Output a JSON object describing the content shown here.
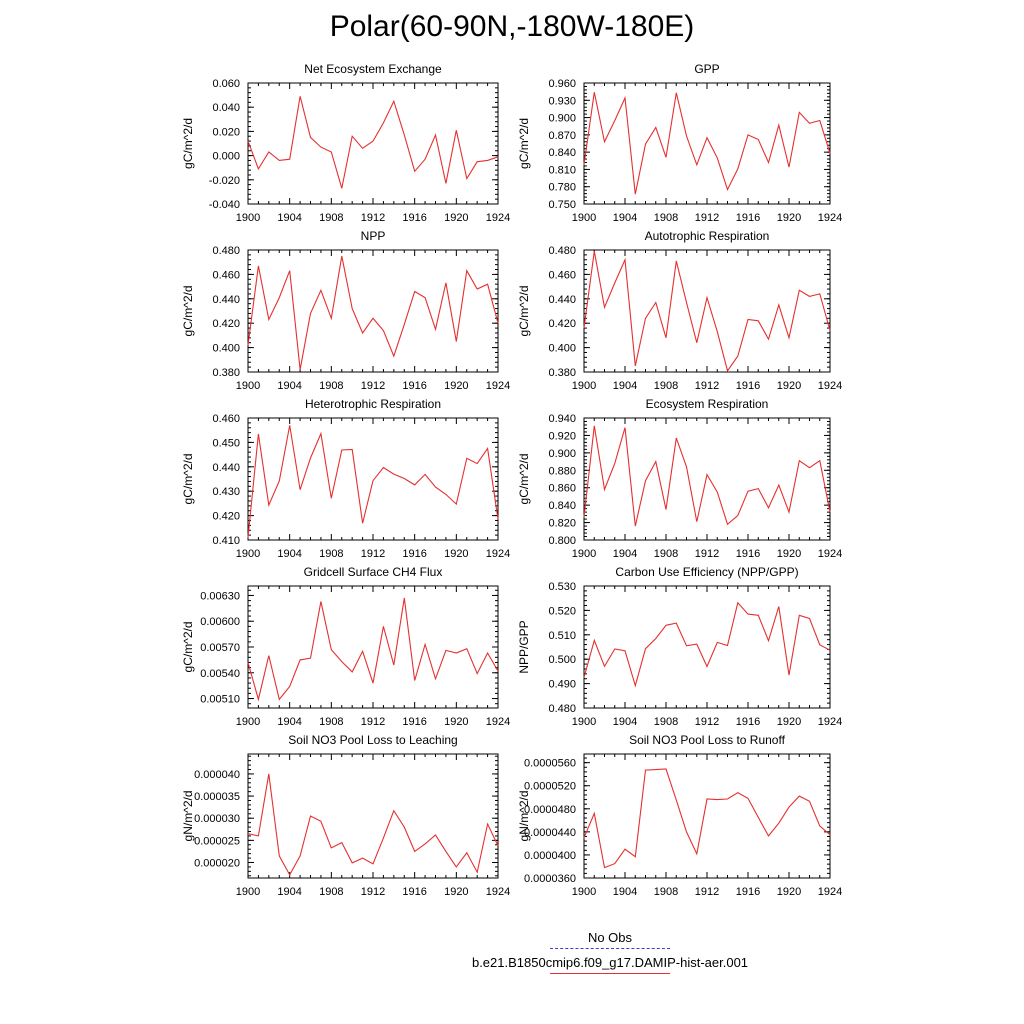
{
  "figure": {
    "title": "Polar(60-90N,-180W-180E)",
    "legend": [
      {
        "label": "No Obs",
        "style": "dashed",
        "color": "#3b3bd6"
      },
      {
        "label": "b.e21.B1850cmip6.f09_g17.DAMIP-hist-aer.001",
        "style": "solid",
        "color": "#e53030"
      }
    ]
  },
  "chart_data": [
    {
      "type": "line",
      "title": "Net Ecosystem Exchange",
      "ylabel": "gC/m^2/d",
      "ylim": [
        -0.04,
        0.06
      ],
      "yticks": [
        "-0.040",
        "-0.020",
        "0.000",
        "0.020",
        "0.040",
        "0.060"
      ],
      "xlim": [
        1900,
        1924
      ],
      "xticks": [
        "1900",
        "1904",
        "1908",
        "1912",
        "1916",
        "1920",
        "1924"
      ],
      "series": [
        {
          "color": "#e53030",
          "x": [
            1900,
            1901,
            1902,
            1903,
            1904,
            1905,
            1906,
            1907,
            1908,
            1909,
            1910,
            1911,
            1912,
            1913,
            1914,
            1915,
            1916,
            1917,
            1918,
            1919,
            1920,
            1921,
            1922,
            1923,
            1924
          ],
          "y": [
            0.012,
            -0.011,
            0.003,
            -0.004,
            -0.003,
            0.049,
            0.015,
            0.007,
            0.003,
            -0.027,
            0.016,
            0.006,
            0.012,
            0.027,
            0.045,
            0.017,
            -0.013,
            -0.003,
            0.017,
            -0.023,
            0.021,
            -0.019,
            -0.005,
            -0.004,
            -0.001
          ]
        }
      ]
    },
    {
      "type": "line",
      "title": "GPP",
      "ylabel": "gC/m^2/d",
      "ylim": [
        0.75,
        0.96
      ],
      "yticks": [
        "0.750",
        "0.780",
        "0.810",
        "0.840",
        "0.870",
        "0.900",
        "0.930",
        "0.960"
      ],
      "xlim": [
        1900,
        1924
      ],
      "xticks": [
        "1900",
        "1904",
        "1908",
        "1912",
        "1916",
        "1920",
        "1924"
      ],
      "series": [
        {
          "color": "#e53030",
          "x": [
            1900,
            1901,
            1902,
            1903,
            1904,
            1905,
            1906,
            1907,
            1908,
            1909,
            1910,
            1911,
            1912,
            1913,
            1914,
            1915,
            1916,
            1917,
            1918,
            1919,
            1920,
            1921,
            1922,
            1923,
            1924
          ],
          "y": [
            0.818,
            0.944,
            0.858,
            0.895,
            0.934,
            0.767,
            0.854,
            0.883,
            0.831,
            0.943,
            0.868,
            0.818,
            0.865,
            0.83,
            0.775,
            0.811,
            0.87,
            0.862,
            0.822,
            0.887,
            0.814,
            0.909,
            0.89,
            0.895,
            0.838
          ]
        }
      ]
    },
    {
      "type": "line",
      "title": "NPP",
      "ylabel": "gC/m^2/d",
      "ylim": [
        0.38,
        0.48
      ],
      "yticks": [
        "0.380",
        "0.400",
        "0.420",
        "0.440",
        "0.460",
        "0.480"
      ],
      "xlim": [
        1900,
        1924
      ],
      "xticks": [
        "1900",
        "1904",
        "1908",
        "1912",
        "1916",
        "1920",
        "1924"
      ],
      "series": [
        {
          "color": "#e53030",
          "x": [
            1900,
            1901,
            1902,
            1903,
            1904,
            1905,
            1906,
            1907,
            1908,
            1909,
            1910,
            1911,
            1912,
            1913,
            1914,
            1915,
            1916,
            1917,
            1918,
            1919,
            1920,
            1921,
            1922,
            1923,
            1924
          ],
          "y": [
            0.402,
            0.467,
            0.423,
            0.441,
            0.463,
            0.382,
            0.428,
            0.447,
            0.424,
            0.475,
            0.432,
            0.412,
            0.424,
            0.414,
            0.393,
            0.419,
            0.446,
            0.441,
            0.415,
            0.453,
            0.405,
            0.463,
            0.448,
            0.452,
            0.42
          ]
        }
      ]
    },
    {
      "type": "line",
      "title": "Autotrophic Respiration",
      "ylabel": "gC/m^2/d",
      "ylim": [
        0.38,
        0.48
      ],
      "yticks": [
        "0.380",
        "0.400",
        "0.420",
        "0.440",
        "0.460",
        "0.480"
      ],
      "xlim": [
        1900,
        1924
      ],
      "xticks": [
        "1900",
        "1904",
        "1908",
        "1912",
        "1916",
        "1920",
        "1924"
      ],
      "series": [
        {
          "color": "#e53030",
          "x": [
            1900,
            1901,
            1902,
            1903,
            1904,
            1905,
            1906,
            1907,
            1908,
            1909,
            1910,
            1911,
            1912,
            1913,
            1914,
            1915,
            1916,
            1917,
            1918,
            1919,
            1920,
            1921,
            1922,
            1923,
            1924
          ],
          "y": [
            0.416,
            0.479,
            0.433,
            0.453,
            0.472,
            0.385,
            0.424,
            0.437,
            0.408,
            0.471,
            0.437,
            0.404,
            0.441,
            0.413,
            0.381,
            0.393,
            0.423,
            0.422,
            0.407,
            0.435,
            0.408,
            0.447,
            0.442,
            0.444,
            0.414
          ]
        }
      ]
    },
    {
      "type": "line",
      "title": "Heterotrophic Respiration",
      "ylabel": "gC/m^2/d",
      "ylim": [
        0.41,
        0.46
      ],
      "yticks": [
        "0.410",
        "0.420",
        "0.430",
        "0.440",
        "0.450",
        "0.460"
      ],
      "xlim": [
        1900,
        1924
      ],
      "xticks": [
        "1900",
        "1904",
        "1908",
        "1912",
        "1916",
        "1920",
        "1924"
      ],
      "series": [
        {
          "color": "#e53030",
          "x": [
            1900,
            1901,
            1902,
            1903,
            1904,
            1905,
            1906,
            1907,
            1908,
            1909,
            1910,
            1911,
            1912,
            1913,
            1914,
            1915,
            1916,
            1917,
            1918,
            1919,
            1920,
            1921,
            1922,
            1923,
            1924
          ],
          "y": [
            0.411,
            0.4535,
            0.4243,
            0.4342,
            0.457,
            0.4306,
            0.4436,
            0.4536,
            0.4271,
            0.4469,
            0.4471,
            0.4169,
            0.4343,
            0.4397,
            0.437,
            0.4352,
            0.4326,
            0.4369,
            0.4317,
            0.4287,
            0.4247,
            0.4435,
            0.4413,
            0.4475,
            0.4185
          ]
        }
      ]
    },
    {
      "type": "line",
      "title": "Ecosystem Respiration",
      "ylabel": "gC/m^2/d",
      "ylim": [
        0.8,
        0.94
      ],
      "yticks": [
        "0.800",
        "0.820",
        "0.840",
        "0.860",
        "0.880",
        "0.900",
        "0.920",
        "0.940"
      ],
      "xlim": [
        1900,
        1924
      ],
      "xticks": [
        "1900",
        "1904",
        "1908",
        "1912",
        "1916",
        "1920",
        "1924"
      ],
      "series": [
        {
          "color": "#e53030",
          "x": [
            1900,
            1901,
            1902,
            1903,
            1904,
            1905,
            1906,
            1907,
            1908,
            1909,
            1910,
            1911,
            1912,
            1913,
            1914,
            1915,
            1916,
            1917,
            1918,
            1919,
            1920,
            1921,
            1922,
            1923,
            1924
          ],
          "y": [
            0.826,
            0.931,
            0.858,
            0.888,
            0.929,
            0.816,
            0.868,
            0.89,
            0.835,
            0.917,
            0.884,
            0.821,
            0.875,
            0.855,
            0.818,
            0.828,
            0.856,
            0.859,
            0.837,
            0.863,
            0.832,
            0.891,
            0.883,
            0.891,
            0.832
          ]
        }
      ]
    },
    {
      "type": "line",
      "title": "Gridcell Surface CH4 Flux",
      "ylabel": "gC/m^2/d",
      "ylim": [
        0.00499,
        0.00641
      ],
      "yticks": [
        "0.00510",
        "0.00540",
        "0.00570",
        "0.00600",
        "0.00630"
      ],
      "xlim": [
        1900,
        1924
      ],
      "xticks": [
        "1900",
        "1904",
        "1908",
        "1912",
        "1916",
        "1920",
        "1924"
      ],
      "series": [
        {
          "color": "#e53030",
          "x": [
            1900,
            1901,
            1902,
            1903,
            1904,
            1905,
            1906,
            1907,
            1908,
            1909,
            1910,
            1911,
            1912,
            1913,
            1914,
            1915,
            1916,
            1917,
            1918,
            1919,
            1920,
            1921,
            1922,
            1923,
            1924
          ],
          "y": [
            0.00552,
            0.00509,
            0.0056,
            0.00509,
            0.00524,
            0.00555,
            0.00557,
            0.00623,
            0.00567,
            0.00553,
            0.00541,
            0.00565,
            0.00528,
            0.00594,
            0.00549,
            0.00627,
            0.00531,
            0.00573,
            0.00533,
            0.00566,
            0.00563,
            0.00568,
            0.00539,
            0.00563,
            0.00542
          ]
        }
      ]
    },
    {
      "type": "line",
      "title": "Carbon Use Efficiency (NPP/GPP)",
      "ylabel": "NPP/GPP",
      "ylim": [
        0.48,
        0.53
      ],
      "yticks": [
        "0.480",
        "0.490",
        "0.500",
        "0.510",
        "0.520",
        "0.530"
      ],
      "xlim": [
        1900,
        1924
      ],
      "xticks": [
        "1900",
        "1904",
        "1908",
        "1912",
        "1916",
        "1920",
        "1924"
      ],
      "series": [
        {
          "color": "#e53030",
          "x": [
            1900,
            1901,
            1902,
            1903,
            1904,
            1905,
            1906,
            1907,
            1908,
            1909,
            1910,
            1911,
            1912,
            1913,
            1914,
            1915,
            1916,
            1917,
            1918,
            1919,
            1920,
            1921,
            1922,
            1923,
            1924
          ],
          "y": [
            0.4925,
            0.5077,
            0.4971,
            0.5042,
            0.5035,
            0.4892,
            0.5043,
            0.5085,
            0.5139,
            0.5148,
            0.5055,
            0.5062,
            0.497,
            0.5069,
            0.5056,
            0.5231,
            0.5185,
            0.518,
            0.5076,
            0.5216,
            0.4935,
            0.518,
            0.5167,
            0.5059,
            0.5037
          ]
        }
      ]
    },
    {
      "type": "line",
      "title": "Soil NO3 Pool Loss to Leaching",
      "ylabel": "gN/m^2/d",
      "ylim": [
        1.65e-05,
        4.45e-05
      ],
      "yticks": [
        "0.000020",
        "0.000025",
        "0.000030",
        "0.000035",
        "0.000040"
      ],
      "xlim": [
        1900,
        1924
      ],
      "xticks": [
        "1900",
        "1904",
        "1908",
        "1912",
        "1916",
        "1920",
        "1924"
      ],
      "series": [
        {
          "color": "#e53030",
          "x": [
            1900,
            1901,
            1902,
            1903,
            1904,
            1905,
            1906,
            1907,
            1908,
            1909,
            1910,
            1911,
            1912,
            1913,
            1914,
            1915,
            1916,
            1917,
            1918,
            1919,
            1920,
            1921,
            1922,
            1923,
            1924
          ],
          "y": [
            2.65e-05,
            2.6e-05,
            4e-05,
            2.15e-05,
            1.72e-05,
            2.15e-05,
            3.05e-05,
            2.93e-05,
            2.33e-05,
            2.45e-05,
            1.99e-05,
            2.1e-05,
            1.97e-05,
            2.55e-05,
            3.17e-05,
            2.8e-05,
            2.25e-05,
            2.42e-05,
            2.62e-05,
            2.25e-05,
            1.9e-05,
            2.22e-05,
            1.78e-05,
            2.87e-05,
            2.38e-05
          ]
        }
      ]
    },
    {
      "type": "line",
      "title": "Soil NO3 Pool Loss to Runoff",
      "ylabel": "gN/m^2/d",
      "ylim": [
        3.6e-05,
        5.75e-05
      ],
      "yticks": [
        "0.0000360",
        "0.0000400",
        "0.0000440",
        "0.0000480",
        "0.0000520",
        "0.0000560"
      ],
      "xlim": [
        1900,
        1924
      ],
      "xticks": [
        "1900",
        "1904",
        "1908",
        "1912",
        "1916",
        "1920",
        "1924"
      ],
      "series": [
        {
          "color": "#e53030",
          "x": [
            1900,
            1901,
            1902,
            1903,
            1904,
            1905,
            1906,
            1907,
            1908,
            1909,
            1910,
            1911,
            1912,
            1913,
            1914,
            1915,
            1916,
            1917,
            1918,
            1919,
            1920,
            1921,
            1922,
            1923,
            1924
          ],
          "y": [
            4.3e-05,
            4.72e-05,
            3.78e-05,
            3.85e-05,
            4.1e-05,
            3.97e-05,
            5.47e-05,
            5.48e-05,
            5.49e-05,
            4.95e-05,
            4.4e-05,
            4.02e-05,
            4.97e-05,
            4.96e-05,
            4.97e-05,
            5.08e-05,
            4.98e-05,
            4.65e-05,
            4.33e-05,
            4.55e-05,
            4.83e-05,
            5.02e-05,
            4.93e-05,
            4.5e-05,
            4.35e-05
          ]
        }
      ]
    }
  ]
}
